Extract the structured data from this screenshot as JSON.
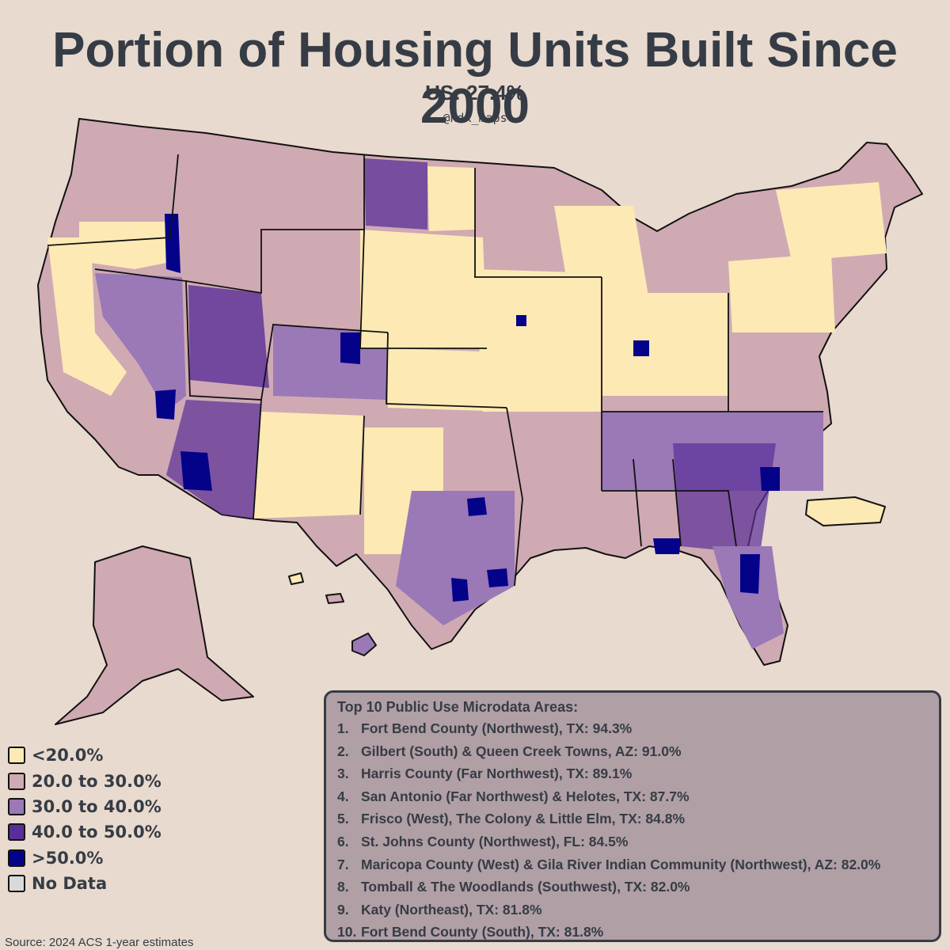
{
  "title": "Portion of Housing Units Built Since 2000",
  "subtitle": "US: 27.4%",
  "credit": "@hdk_maps",
  "colors": {
    "background": "#e8dace",
    "lt20": "#fde9b4",
    "c20_30": "#cfaab3",
    "c30_40": "#9b78b6",
    "c40_50": "#5a2e98",
    "gt50": "#05028a",
    "no_data": "#d9d9d9",
    "border": "#111111",
    "box": "#b09fa5"
  },
  "legend": [
    {
      "label": "<20.0%",
      "color": "#fde9b4"
    },
    {
      "label": "20.0 to 30.0%",
      "color": "#cfaab3"
    },
    {
      "label": "30.0 to 40.0%",
      "color": "#9b78b6"
    },
    {
      "label": "40.0 to 50.0%",
      "color": "#5a2e98"
    },
    {
      "label": ">50.0%",
      "color": "#05028a"
    },
    {
      "label": "No Data",
      "color": "#d9d9d9"
    }
  ],
  "top_areas": {
    "heading": "Top 10 Public Use Microdata Areas:",
    "items": [
      {
        "rank": "1.",
        "text": "Fort Bend County (Northwest), TX: 94.3%"
      },
      {
        "rank": "2.",
        "text": "Gilbert (South) & Queen Creek Towns, AZ: 91.0%"
      },
      {
        "rank": "3.",
        "text": "Harris County (Far Northwest), TX: 89.1%"
      },
      {
        "rank": "4.",
        "text": "San Antonio (Far Northwest) & Helotes, TX: 87.7%"
      },
      {
        "rank": "5.",
        "text": "Frisco (West), The Colony & Little Elm, TX: 84.8%"
      },
      {
        "rank": "6.",
        "text": "St. Johns County (Northwest), FL: 84.5%"
      },
      {
        "rank": "7.",
        "text": "Maricopa County (West) & Gila River Indian Community (Northwest), AZ: 82.0%"
      },
      {
        "rank": "8.",
        "text": "Tomball & The Woodlands (Southwest), TX: 82.0%"
      },
      {
        "rank": "9.",
        "text": "Katy (Northeast), TX: 81.8%"
      },
      {
        "rank": "10.",
        "text": "Fort Bend County (South), TX: 81.8%"
      }
    ]
  },
  "source": "Source: 2024 ACS 1-year estimates"
}
